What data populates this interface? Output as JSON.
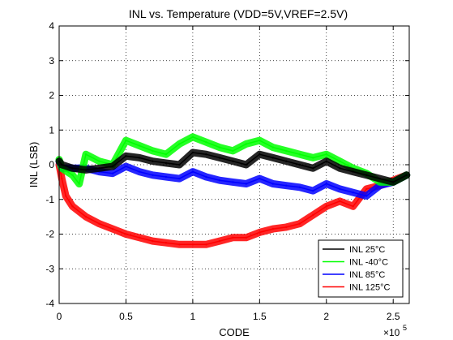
{
  "chart_data": {
    "type": "line",
    "title": "INL vs. Temperature (VDD=5V,VREF=2.5V)",
    "xlabel": "CODE",
    "ylabel": "INL (LSB)",
    "x_scale_label": "×10",
    "x_scale_exp": "5",
    "xlim": [
      0,
      2.62
    ],
    "ylim": [
      -4,
      4
    ],
    "x_ticks": [
      0,
      0.5,
      1,
      1.5,
      2,
      2.5
    ],
    "x_tick_labels": [
      "0",
      "0.5",
      "1",
      "1.5",
      "2",
      "2.5"
    ],
    "y_ticks": [
      -4,
      -3,
      -2,
      -1,
      0,
      1,
      2,
      3,
      4
    ],
    "y_tick_labels": [
      "-4",
      "-3",
      "-2",
      "-1",
      "0",
      "1",
      "2",
      "3",
      "4"
    ],
    "grid": true,
    "legend_position": "bottom-right",
    "series": [
      {
        "name": "INL 25°C",
        "color": "#000000",
        "x": [
          0,
          0.02,
          0.1,
          0.2,
          0.3,
          0.4,
          0.5,
          0.6,
          0.7,
          0.8,
          0.9,
          1.0,
          1.1,
          1.2,
          1.3,
          1.4,
          1.5,
          1.6,
          1.7,
          1.8,
          1.9,
          2.0,
          2.1,
          2.2,
          2.3,
          2.4,
          2.5,
          2.6
        ],
        "y": [
          0.1,
          0.0,
          -0.1,
          -0.15,
          -0.1,
          -0.05,
          0.25,
          0.2,
          0.1,
          0.05,
          0.0,
          0.35,
          0.3,
          0.2,
          0.1,
          0.0,
          0.3,
          0.2,
          0.1,
          0.0,
          -0.1,
          0.1,
          -0.1,
          -0.2,
          -0.3,
          -0.4,
          -0.5,
          -0.3
        ]
      },
      {
        "name": "INL -40°C",
        "color": "#00ff00",
        "x": [
          0,
          0.02,
          0.1,
          0.15,
          0.2,
          0.3,
          0.4,
          0.5,
          0.6,
          0.7,
          0.8,
          0.9,
          1.0,
          1.1,
          1.2,
          1.3,
          1.4,
          1.5,
          1.6,
          1.7,
          1.8,
          1.9,
          2.0,
          2.1,
          2.2,
          2.3,
          2.4,
          2.5,
          2.6
        ],
        "y": [
          0.15,
          -0.1,
          -0.3,
          -0.55,
          0.3,
          0.1,
          0.0,
          0.7,
          0.55,
          0.4,
          0.3,
          0.6,
          0.8,
          0.65,
          0.5,
          0.4,
          0.6,
          0.7,
          0.5,
          0.4,
          0.3,
          0.2,
          0.3,
          0.1,
          -0.1,
          -0.25,
          -0.5,
          -0.5,
          -0.3
        ]
      },
      {
        "name": "INL 85°C",
        "color": "#0000ff",
        "x": [
          0,
          0.02,
          0.1,
          0.2,
          0.3,
          0.4,
          0.5,
          0.6,
          0.7,
          0.8,
          0.9,
          1.0,
          1.1,
          1.2,
          1.3,
          1.4,
          1.5,
          1.6,
          1.7,
          1.8,
          1.9,
          2.0,
          2.1,
          2.2,
          2.3,
          2.4,
          2.5,
          2.6
        ],
        "y": [
          0.1,
          -0.1,
          -0.1,
          -0.1,
          -0.2,
          -0.25,
          -0.05,
          -0.2,
          -0.3,
          -0.35,
          -0.4,
          -0.2,
          -0.35,
          -0.45,
          -0.5,
          -0.55,
          -0.4,
          -0.55,
          -0.6,
          -0.65,
          -0.75,
          -0.55,
          -0.7,
          -0.8,
          -0.9,
          -0.6,
          -0.5,
          -0.3
        ]
      },
      {
        "name": "INL 125°C",
        "color": "#ff0000",
        "x": [
          0,
          0.02,
          0.05,
          0.1,
          0.2,
          0.3,
          0.4,
          0.5,
          0.6,
          0.7,
          0.8,
          0.9,
          1.0,
          1.1,
          1.2,
          1.3,
          1.4,
          1.5,
          1.6,
          1.7,
          1.8,
          1.9,
          2.0,
          2.1,
          2.2,
          2.3,
          2.4,
          2.5,
          2.6
        ],
        "y": [
          0.0,
          -0.4,
          -0.9,
          -1.2,
          -1.5,
          -1.7,
          -1.85,
          -2.0,
          -2.1,
          -2.2,
          -2.25,
          -2.3,
          -2.3,
          -2.3,
          -2.2,
          -2.1,
          -2.1,
          -1.95,
          -1.85,
          -1.8,
          -1.7,
          -1.45,
          -1.2,
          -1.05,
          -1.2,
          -0.7,
          -0.6,
          -0.45,
          -0.3
        ]
      }
    ]
  }
}
